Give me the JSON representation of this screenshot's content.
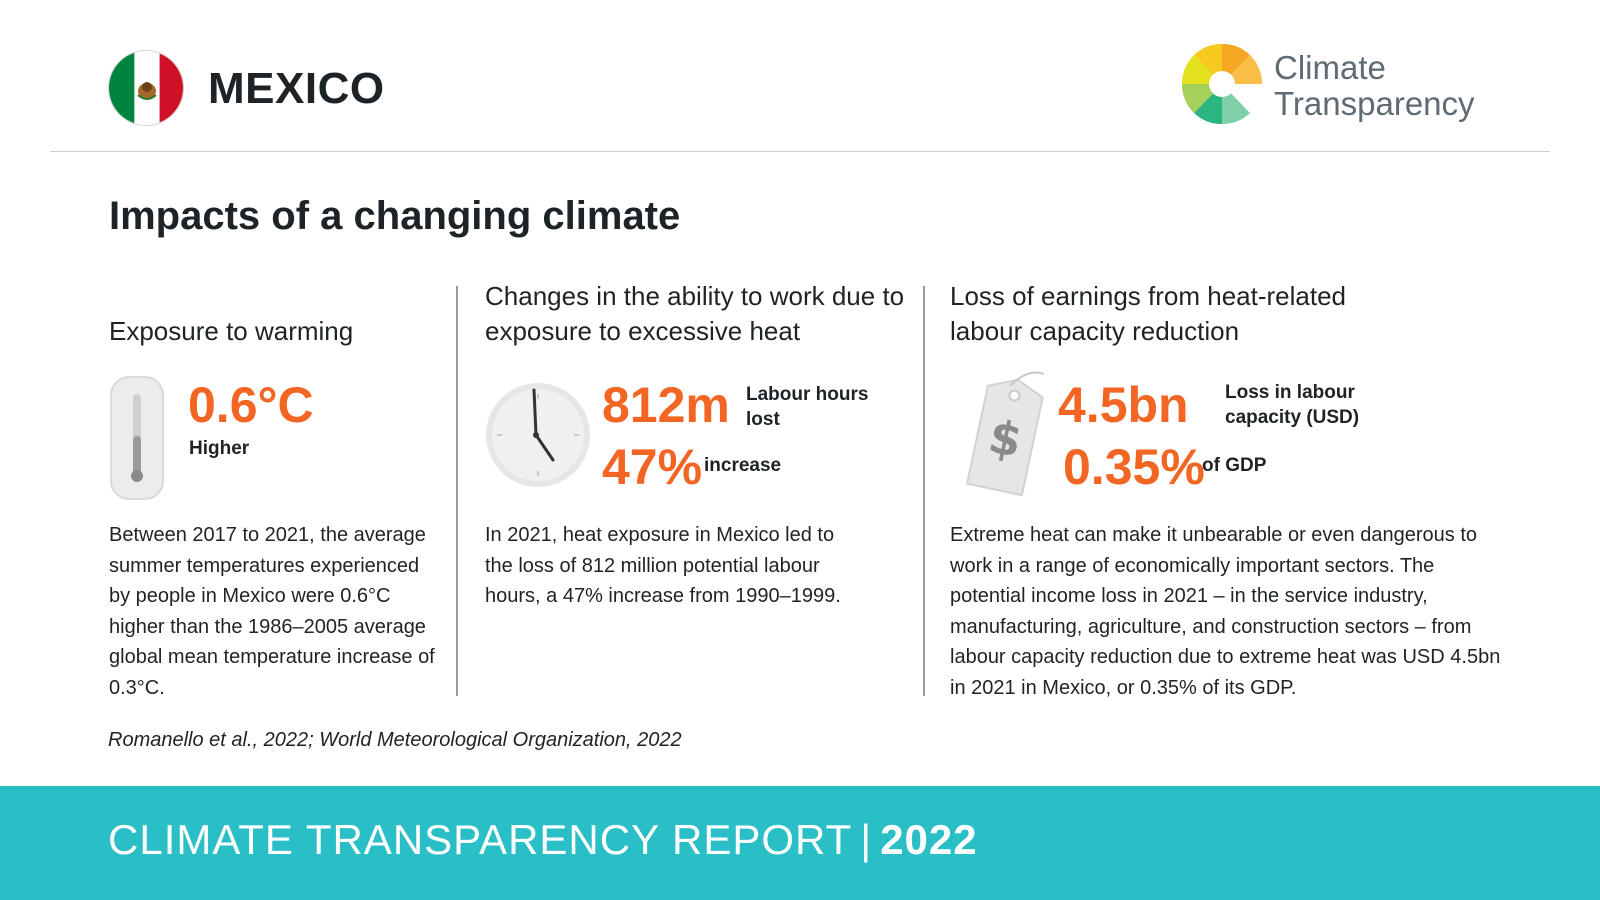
{
  "header": {
    "country": "MEXICO",
    "logo_text_line1": "Climate",
    "logo_text_line2": "Transparency"
  },
  "page_title": "Impacts of a changing climate",
  "warming": {
    "title": "Exposure to warming",
    "value": "0.6°C",
    "value_label": "Higher",
    "paragraph": "Between 2017 to 2021, the average summer temperatures experienced by people in Mexico were 0.6°C higher than the 1986–2005 average global mean temperature increase of 0.3°C.",
    "icon": "thermometer-icon"
  },
  "work": {
    "title": "Changes in the ability to work due to exposure to excessive heat",
    "value1": "812m",
    "label1": "Labour hours lost",
    "value2": "47%",
    "label2": "increase",
    "paragraph": "In 2021, heat exposure in Mexico led to the loss of 812 million potential labour hours, a 47% increase from 1990–1999.",
    "icon": "clock-icon"
  },
  "earnings": {
    "title": "Loss of earnings from heat-related labour capacity reduction",
    "value1": "4.5bn",
    "label1": "Loss in labour capacity (USD)",
    "value2": "0.35%",
    "label2": "of GDP",
    "paragraph": "Extreme heat can make it unbearable or even dangerous to work in a range of economically important sectors. The potential income loss in 2021 – in the service industry, manufacturing, agriculture, and construction sectors – from labour capacity reduction due to extreme heat was USD 4.5bn in 2021 in Mexico, or 0.35% of its GDP.",
    "icon": "price-tag-icon"
  },
  "source": "Romanello et al., 2022; World Meteorological Organization, 2022",
  "footer": {
    "report": "CLIMATE TRANSPARENCY REPORT",
    "separator": "|",
    "year": "2022"
  },
  "colors": {
    "accent": "#f26522",
    "footer_bg": "#2abec6",
    "text": "#1d2326"
  }
}
